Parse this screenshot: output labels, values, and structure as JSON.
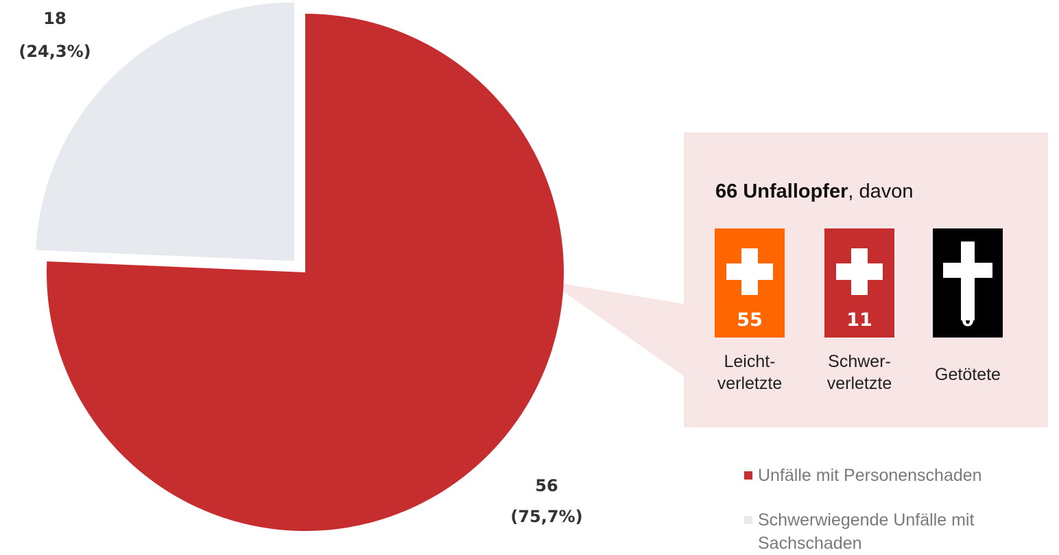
{
  "chart_data": {
    "type": "pie",
    "categories": [
      "Unfälle mit Personenschaden",
      "Schwerwiegende Unfälle mit Sachschaden"
    ],
    "values": [
      56,
      18
    ],
    "percent_labels": [
      "(75,7%)",
      "(24,3%)"
    ],
    "colors": [
      "#c62d2f",
      "#e6e9ee"
    ]
  },
  "callout": {
    "total": "66 Unfallopfer",
    "suffix": ", davon",
    "items": [
      {
        "value": 55,
        "label": [
          "Leicht-",
          "verletzte"
        ],
        "color": "#ff6600"
      },
      {
        "value": 11,
        "label": [
          "Schwer-",
          "verletzte"
        ],
        "color": "#c62d2f"
      },
      {
        "value": 0,
        "label": [
          "Getötete"
        ],
        "color": "#000000"
      }
    ]
  }
}
